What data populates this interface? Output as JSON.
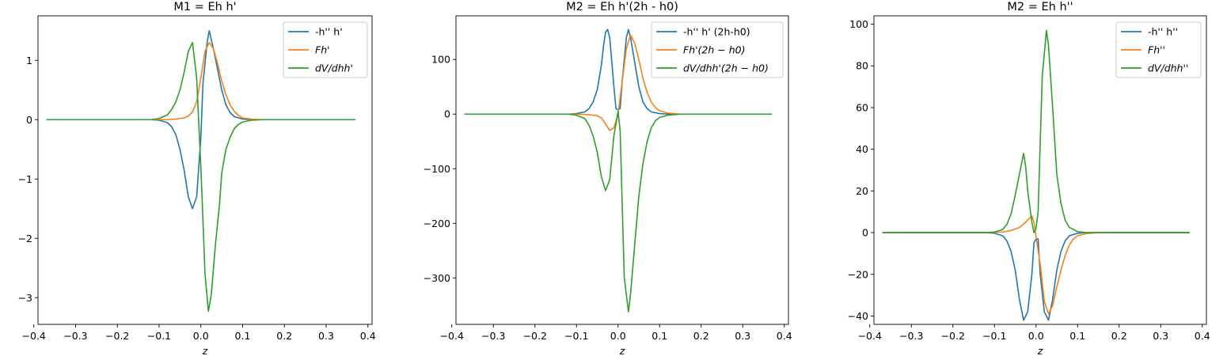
{
  "colors": {
    "blue": "#1f77b4",
    "orange": "#ff7f0e",
    "green": "#2ca02c"
  },
  "chart_data": [
    {
      "type": "line",
      "title": "M1 = Eh h'",
      "xlabel": "z",
      "ylabel": "",
      "xlim": [
        -0.39,
        0.41
      ],
      "ylim": [
        -3.45,
        1.75
      ],
      "xticks": [
        -0.4,
        -0.3,
        -0.2,
        -0.1,
        0.0,
        0.1,
        0.2,
        0.3,
        0.4
      ],
      "xtick_labels": [
        "−0.4",
        "−0.3",
        "−0.2",
        "−0.1",
        "0.0",
        "0.1",
        "0.2",
        "0.3",
        "0.4"
      ],
      "yticks": [
        -3,
        -2,
        -1,
        0,
        1
      ],
      "ytick_labels": [
        "−3",
        "−2",
        "−1",
        "0",
        "1"
      ],
      "legend": "top-right",
      "series": [
        {
          "name": "-h'' h'",
          "color": "blue",
          "points": [
            [
              -0.37,
              0
            ],
            [
              -0.12,
              0
            ],
            [
              -0.1,
              -0.01
            ],
            [
              -0.08,
              -0.05
            ],
            [
              -0.07,
              -0.12
            ],
            [
              -0.06,
              -0.25
            ],
            [
              -0.05,
              -0.5
            ],
            [
              -0.04,
              -0.85
            ],
            [
              -0.03,
              -1.3
            ],
            [
              -0.02,
              -1.5
            ],
            [
              -0.01,
              -1.3
            ],
            [
              0.0,
              -0.3
            ],
            [
              0.005,
              0.6
            ],
            [
              0.015,
              1.3
            ],
            [
              0.02,
              1.5
            ],
            [
              0.03,
              1.2
            ],
            [
              0.04,
              0.85
            ],
            [
              0.05,
              0.5
            ],
            [
              0.06,
              0.25
            ],
            [
              0.07,
              0.12
            ],
            [
              0.08,
              0.05
            ],
            [
              0.1,
              0.01
            ],
            [
              0.12,
              0
            ],
            [
              0.37,
              0
            ]
          ]
        },
        {
          "name": "$Fh'$",
          "color": "orange",
          "points": [
            [
              -0.37,
              0
            ],
            [
              -0.12,
              0
            ],
            [
              -0.08,
              0.0
            ],
            [
              -0.06,
              0.01
            ],
            [
              -0.04,
              0.03
            ],
            [
              -0.03,
              0.06
            ],
            [
              -0.02,
              0.13
            ],
            [
              -0.01,
              0.3
            ],
            [
              0.0,
              0.7
            ],
            [
              0.01,
              1.15
            ],
            [
              0.02,
              1.3
            ],
            [
              0.03,
              1.2
            ],
            [
              0.04,
              0.95
            ],
            [
              0.05,
              0.65
            ],
            [
              0.06,
              0.42
            ],
            [
              0.07,
              0.25
            ],
            [
              0.08,
              0.14
            ],
            [
              0.09,
              0.07
            ],
            [
              0.1,
              0.03
            ],
            [
              0.12,
              0.01
            ],
            [
              0.15,
              0
            ],
            [
              0.37,
              0
            ]
          ]
        },
        {
          "name": "$dV/dhh'$",
          "color": "green",
          "points": [
            [
              -0.37,
              0
            ],
            [
              -0.12,
              0
            ],
            [
              -0.1,
              0.02
            ],
            [
              -0.08,
              0.08
            ],
            [
              -0.07,
              0.17
            ],
            [
              -0.06,
              0.3
            ],
            [
              -0.05,
              0.5
            ],
            [
              -0.04,
              0.8
            ],
            [
              -0.03,
              1.15
            ],
            [
              -0.02,
              1.3
            ],
            [
              -0.01,
              0.7
            ],
            [
              0.0,
              -0.8
            ],
            [
              0.01,
              -2.6
            ],
            [
              0.018,
              -3.23
            ],
            [
              0.025,
              -2.95
            ],
            [
              0.035,
              -2.1
            ],
            [
              0.045,
              -1.4
            ],
            [
              0.05,
              -0.9
            ],
            [
              0.06,
              -0.5
            ],
            [
              0.07,
              -0.3
            ],
            [
              0.08,
              -0.15
            ],
            [
              0.09,
              -0.08
            ],
            [
              0.1,
              -0.04
            ],
            [
              0.12,
              -0.01
            ],
            [
              0.15,
              0
            ],
            [
              0.37,
              0
            ]
          ]
        }
      ]
    },
    {
      "type": "line",
      "title": "M2 = Eh h'(2h - h0)",
      "xlabel": "z",
      "ylabel": "",
      "xlim": [
        -0.39,
        0.41
      ],
      "ylim": [
        -385,
        180
      ],
      "xticks": [
        -0.4,
        -0.3,
        -0.2,
        -0.1,
        0.0,
        0.1,
        0.2,
        0.3,
        0.4
      ],
      "xtick_labels": [
        "−0.4",
        "−0.3",
        "−0.2",
        "−0.1",
        "0.0",
        "0.1",
        "0.2",
        "0.3",
        "0.4"
      ],
      "yticks": [
        -300,
        -200,
        -100,
        0,
        100
      ],
      "ytick_labels": [
        "−300",
        "−200",
        "−100",
        "0",
        "100"
      ],
      "legend": "top-right",
      "series": [
        {
          "name": "-h'' h' (2h-h0)",
          "color": "blue",
          "points": [
            [
              -0.37,
              0
            ],
            [
              -0.12,
              0
            ],
            [
              -0.1,
              1
            ],
            [
              -0.08,
              4
            ],
            [
              -0.07,
              10
            ],
            [
              -0.06,
              22
            ],
            [
              -0.05,
              45
            ],
            [
              -0.04,
              90
            ],
            [
              -0.035,
              125
            ],
            [
              -0.03,
              150
            ],
            [
              -0.025,
              155
            ],
            [
              -0.02,
              140
            ],
            [
              -0.015,
              95
            ],
            [
              -0.01,
              50
            ],
            [
              -0.005,
              10
            ],
            [
              0.0,
              8
            ],
            [
              0.005,
              10
            ],
            [
              0.01,
              60
            ],
            [
              0.02,
              140
            ],
            [
              0.025,
              155
            ],
            [
              0.03,
              140
            ],
            [
              0.04,
              95
            ],
            [
              0.05,
              50
            ],
            [
              0.06,
              22
            ],
            [
              0.07,
              10
            ],
            [
              0.08,
              4
            ],
            [
              0.1,
              1
            ],
            [
              0.12,
              0
            ],
            [
              0.37,
              0
            ]
          ]
        },
        {
          "name": "$Fh'(2h - h0)$",
          "color": "orange",
          "points": [
            [
              -0.37,
              0
            ],
            [
              -0.12,
              0
            ],
            [
              -0.1,
              0
            ],
            [
              -0.07,
              -1
            ],
            [
              -0.05,
              -3
            ],
            [
              -0.04,
              -7
            ],
            [
              -0.03,
              -18
            ],
            [
              -0.02,
              -30
            ],
            [
              -0.01,
              -25
            ],
            [
              0.0,
              0
            ],
            [
              0.01,
              60
            ],
            [
              0.02,
              120
            ],
            [
              0.03,
              145
            ],
            [
              0.04,
              130
            ],
            [
              0.05,
              100
            ],
            [
              0.06,
              65
            ],
            [
              0.07,
              40
            ],
            [
              0.08,
              22
            ],
            [
              0.09,
              12
            ],
            [
              0.1,
              6
            ],
            [
              0.12,
              2
            ],
            [
              0.15,
              0
            ],
            [
              0.37,
              0
            ]
          ]
        },
        {
          "name": "$dV/dhh'(2h - h0)$",
          "color": "green",
          "points": [
            [
              -0.37,
              0
            ],
            [
              -0.12,
              0
            ],
            [
              -0.1,
              -2
            ],
            [
              -0.08,
              -8
            ],
            [
              -0.07,
              -20
            ],
            [
              -0.06,
              -40
            ],
            [
              -0.05,
              -70
            ],
            [
              -0.04,
              -115
            ],
            [
              -0.03,
              -140
            ],
            [
              -0.02,
              -120
            ],
            [
              -0.01,
              -40
            ],
            [
              0.0,
              5
            ],
            [
              0.005,
              -30
            ],
            [
              0.015,
              -300
            ],
            [
              0.025,
              -362
            ],
            [
              0.03,
              -330
            ],
            [
              0.04,
              -240
            ],
            [
              0.05,
              -150
            ],
            [
              0.06,
              -90
            ],
            [
              0.07,
              -50
            ],
            [
              0.08,
              -25
            ],
            [
              0.09,
              -12
            ],
            [
              0.1,
              -6
            ],
            [
              0.12,
              -2
            ],
            [
              0.15,
              0
            ],
            [
              0.37,
              0
            ]
          ]
        }
      ]
    },
    {
      "type": "line",
      "title": "M2 = Eh h''",
      "xlabel": "z",
      "ylabel": "",
      "xlim": [
        -0.39,
        0.41
      ],
      "ylim": [
        -44,
        104
      ],
      "xticks": [
        -0.4,
        -0.3,
        -0.2,
        -0.1,
        0.0,
        0.1,
        0.2,
        0.3,
        0.4
      ],
      "xtick_labels": [
        "−0.4",
        "−0.3",
        "−0.2",
        "−0.1",
        "0.0",
        "0.1",
        "0.2",
        "0.3",
        "0.4"
      ],
      "yticks": [
        -40,
        -20,
        0,
        20,
        40,
        60,
        80,
        100
      ],
      "ytick_labels": [
        "−40",
        "−20",
        "0",
        "20",
        "40",
        "60",
        "80",
        "100"
      ],
      "legend": "top-right",
      "series": [
        {
          "name": "-h'' h''",
          "color": "blue",
          "points": [
            [
              -0.37,
              0
            ],
            [
              -0.12,
              0
            ],
            [
              -0.1,
              -0.3
            ],
            [
              -0.08,
              -1.5
            ],
            [
              -0.07,
              -4
            ],
            [
              -0.06,
              -9
            ],
            [
              -0.05,
              -18
            ],
            [
              -0.04,
              -32
            ],
            [
              -0.03,
              -42
            ],
            [
              -0.02,
              -38
            ],
            [
              -0.01,
              -20
            ],
            [
              -0.005,
              -5
            ],
            [
              0.0,
              -3
            ],
            [
              0.005,
              -3
            ],
            [
              0.01,
              -20
            ],
            [
              0.02,
              -38
            ],
            [
              0.03,
              -42
            ],
            [
              0.04,
              -32
            ],
            [
              0.05,
              -18
            ],
            [
              0.06,
              -9
            ],
            [
              0.07,
              -4
            ],
            [
              0.08,
              -1.5
            ],
            [
              0.1,
              -0.3
            ],
            [
              0.12,
              0
            ],
            [
              0.37,
              0
            ]
          ]
        },
        {
          "name": "$Fh''$",
          "color": "orange",
          "points": [
            [
              -0.37,
              0
            ],
            [
              -0.12,
              0
            ],
            [
              -0.08,
              0.3
            ],
            [
              -0.06,
              1
            ],
            [
              -0.04,
              2.5
            ],
            [
              -0.03,
              4
            ],
            [
              -0.02,
              6
            ],
            [
              -0.01,
              8
            ],
            [
              -0.005,
              5
            ],
            [
              0.0,
              -2
            ],
            [
              0.01,
              -15
            ],
            [
              0.02,
              -33
            ],
            [
              0.03,
              -39
            ],
            [
              0.04,
              -35
            ],
            [
              0.05,
              -26
            ],
            [
              0.06,
              -18
            ],
            [
              0.07,
              -11
            ],
            [
              0.08,
              -6
            ],
            [
              0.09,
              -3
            ],
            [
              0.1,
              -1.5
            ],
            [
              0.12,
              -0.5
            ],
            [
              0.15,
              0
            ],
            [
              0.37,
              0
            ]
          ]
        },
        {
          "name": "$dV/dhh''$",
          "color": "green",
          "points": [
            [
              -0.37,
              0
            ],
            [
              -0.12,
              0
            ],
            [
              -0.1,
              0.3
            ],
            [
              -0.08,
              1.5
            ],
            [
              -0.07,
              4
            ],
            [
              -0.06,
              9
            ],
            [
              -0.05,
              18
            ],
            [
              -0.04,
              28
            ],
            [
              -0.03,
              38
            ],
            [
              -0.025,
              32
            ],
            [
              -0.02,
              20
            ],
            [
              -0.01,
              5
            ],
            [
              -0.005,
              0
            ],
            [
              0.0,
              2
            ],
            [
              0.005,
              10
            ],
            [
              0.015,
              75
            ],
            [
              0.025,
              97
            ],
            [
              0.03,
              90
            ],
            [
              0.04,
              60
            ],
            [
              0.05,
              28
            ],
            [
              0.06,
              14
            ],
            [
              0.07,
              6
            ],
            [
              0.08,
              2.5
            ],
            [
              0.1,
              0.5
            ],
            [
              0.12,
              0
            ],
            [
              0.37,
              0
            ]
          ]
        }
      ]
    }
  ]
}
